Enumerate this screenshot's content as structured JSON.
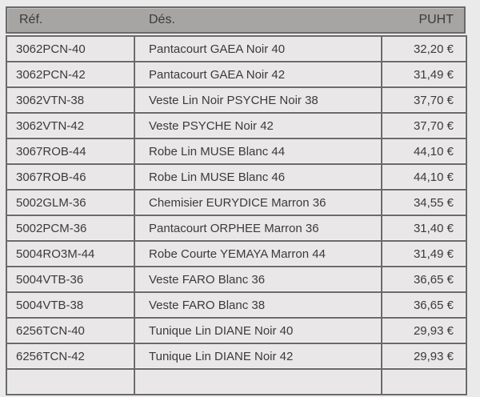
{
  "colors": {
    "page_bg": "#eaeaea",
    "header_bg": "#a7a5a3",
    "cell_bg": "#e9e7e7",
    "border": "#6a6a6a",
    "text": "#3b3b3b"
  },
  "table": {
    "columns": [
      {
        "key": "ref",
        "label": "Réf."
      },
      {
        "key": "des",
        "label": "Dés."
      },
      {
        "key": "puht",
        "label": "PUHT"
      }
    ],
    "rows": [
      {
        "ref": "3062PCN-40",
        "des": "Pantacourt GAEA Noir 40",
        "puht": "32,20 €"
      },
      {
        "ref": "3062PCN-42",
        "des": "Pantacourt GAEA Noir 42",
        "puht": "31,49 €"
      },
      {
        "ref": "3062VTN-38",
        "des": "Veste Lin Noir PSYCHE Noir 38",
        "puht": "37,70 €"
      },
      {
        "ref": "3062VTN-42",
        "des": "Veste PSYCHE Noir 42",
        "puht": "37,70 €"
      },
      {
        "ref": "3067ROB-44",
        "des": "Robe Lin MUSE Blanc 44",
        "puht": "44,10 €"
      },
      {
        "ref": "3067ROB-46",
        "des": "Robe Lin MUSE Blanc 46",
        "puht": "44,10 €"
      },
      {
        "ref": "5002GLM-36",
        "des": "Chemisier EURYDICE Marron 36",
        "puht": "34,55 €"
      },
      {
        "ref": "5002PCM-36",
        "des": "Pantacourt ORPHEE Marron 36",
        "puht": "31,40 €"
      },
      {
        "ref": "5004RO3M-44",
        "des": "Robe Courte YEMAYA Marron 44",
        "puht": "31,49 €"
      },
      {
        "ref": "5004VTB-36",
        "des": "Veste FARO Blanc 36",
        "puht": "36,65 €"
      },
      {
        "ref": "5004VTB-38",
        "des": "Veste FARO Blanc 38",
        "puht": "36,65 €"
      },
      {
        "ref": "6256TCN-40",
        "des": "Tunique Lin DIANE Noir 40",
        "puht": "29,93 €"
      },
      {
        "ref": "6256TCN-42",
        "des": "Tunique Lin DIANE Noir 42",
        "puht": "29,93 €"
      }
    ],
    "trailing_empty_row": true
  }
}
